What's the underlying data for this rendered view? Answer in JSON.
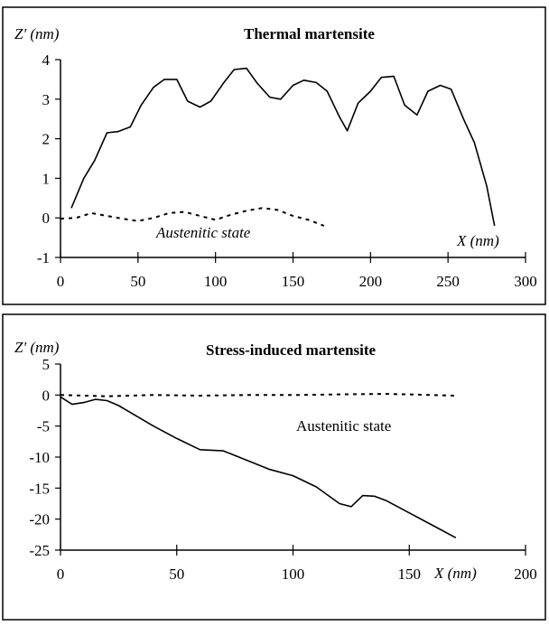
{
  "chart_data": [
    {
      "type": "line",
      "title": "Thermal martensite",
      "xlabel": "X (nm)",
      "ylabel": "Z' (nm)",
      "xlim": [
        0,
        300
      ],
      "ylim": [
        -1,
        4
      ],
      "xticks": [
        0,
        50,
        100,
        150,
        200,
        250,
        300
      ],
      "yticks": [
        -1,
        0,
        1,
        2,
        3,
        4
      ],
      "grid": false,
      "annotations": [
        {
          "text": "Austenitic state",
          "style": "italic"
        }
      ],
      "series": [
        {
          "line_style": "solid",
          "x": [
            7,
            15,
            22,
            30,
            37,
            45,
            52,
            60,
            67,
            75,
            82,
            90,
            97,
            105,
            112,
            120,
            127,
            135,
            142,
            150,
            157,
            165,
            172,
            180,
            185,
            192,
            200,
            207,
            215,
            222,
            230,
            237,
            245,
            252,
            260,
            267,
            275,
            280
          ],
          "y": [
            0.25,
            1.0,
            1.45,
            2.15,
            2.18,
            2.3,
            2.85,
            3.3,
            3.5,
            3.5,
            2.95,
            2.8,
            2.95,
            3.4,
            3.75,
            3.78,
            3.4,
            3.05,
            3.0,
            3.35,
            3.48,
            3.42,
            3.2,
            2.55,
            2.2,
            2.9,
            3.2,
            3.55,
            3.58,
            2.85,
            2.6,
            3.2,
            3.35,
            3.25,
            2.5,
            1.9,
            0.8,
            -0.2
          ]
        },
        {
          "line_style": "dotted",
          "x": [
            0,
            10,
            20,
            30,
            40,
            50,
            60,
            70,
            80,
            90,
            100,
            110,
            120,
            130,
            140,
            150,
            160,
            170
          ],
          "y": [
            -0.02,
            0.0,
            0.12,
            0.05,
            -0.02,
            -0.08,
            0.0,
            0.12,
            0.15,
            0.05,
            -0.05,
            0.08,
            0.18,
            0.25,
            0.2,
            0.05,
            -0.05,
            -0.2
          ]
        }
      ]
    },
    {
      "type": "line",
      "title": "Stress-induced martensite",
      "xlabel": "X (nm)",
      "ylabel": "Z' (nm)",
      "xlim": [
        0,
        200
      ],
      "ylim": [
        -25,
        5
      ],
      "xticks": [
        0,
        50,
        100,
        150,
        200
      ],
      "yticks": [
        5,
        0,
        -5,
        -10,
        -15,
        -20,
        -25
      ],
      "grid": false,
      "annotations": [
        {
          "text": "Austenitic state",
          "style": "normal"
        }
      ],
      "series": [
        {
          "line_style": "solid",
          "x": [
            0,
            5,
            10,
            15,
            20,
            25,
            30,
            40,
            50,
            60,
            70,
            80,
            90,
            100,
            110,
            120,
            125,
            130,
            135,
            140,
            150,
            160,
            170
          ],
          "y": [
            -0.3,
            -1.5,
            -1.2,
            -0.7,
            -0.9,
            -1.7,
            -2.8,
            -5.0,
            -7.0,
            -8.8,
            -9.0,
            -10.5,
            -12.0,
            -13.0,
            -14.8,
            -17.5,
            -18.0,
            -16.2,
            -16.3,
            -17.0,
            -19.0,
            -21.0,
            -23.0
          ]
        },
        {
          "line_style": "dotted",
          "x": [
            0,
            20,
            40,
            60,
            80,
            100,
            120,
            140,
            160,
            170
          ],
          "y": [
            0.0,
            -0.2,
            0.0,
            -0.1,
            0.0,
            0.0,
            0.1,
            0.2,
            0.0,
            -0.1
          ]
        }
      ]
    }
  ]
}
